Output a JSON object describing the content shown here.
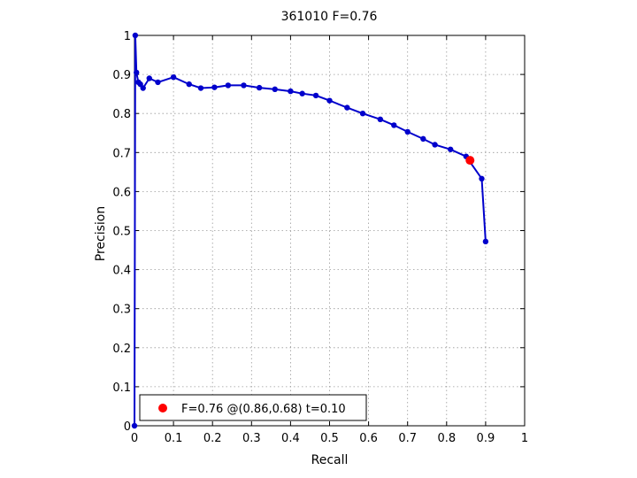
{
  "chart_data": {
    "type": "line",
    "title": "361010 F=0.76",
    "xlabel": "Recall",
    "ylabel": "Precision",
    "xlim": [
      0,
      1
    ],
    "ylim": [
      0,
      1
    ],
    "grid": true,
    "xticks": [
      "0",
      "0.1",
      "0.2",
      "0.3",
      "0.4",
      "0.5",
      "0.6",
      "0.7",
      "0.8",
      "0.9",
      "1"
    ],
    "yticks": [
      "0",
      "0.1",
      "0.2",
      "0.3",
      "0.4",
      "0.5",
      "0.6",
      "0.7",
      "0.8",
      "0.9",
      "1"
    ],
    "line_color": "#0000cc",
    "highlight_color": "#ff0000",
    "series": [
      {
        "x": [
          0.0,
          0.002,
          0.005,
          0.01,
          0.015,
          0.022,
          0.038,
          0.06,
          0.1,
          0.14,
          0.17,
          0.205,
          0.24,
          0.28,
          0.32,
          0.36,
          0.4,
          0.43,
          0.465,
          0.5,
          0.545,
          0.585,
          0.63,
          0.665,
          0.7,
          0.74,
          0.77,
          0.81,
          0.85,
          0.89,
          0.9
        ],
        "y": [
          0.0,
          1.0,
          0.905,
          0.88,
          0.875,
          0.865,
          0.89,
          0.88,
          0.893,
          0.875,
          0.865,
          0.867,
          0.872,
          0.872,
          0.866,
          0.862,
          0.857,
          0.851,
          0.846,
          0.833,
          0.815,
          0.8,
          0.785,
          0.77,
          0.753,
          0.735,
          0.72,
          0.708,
          0.69,
          0.633,
          0.472
        ]
      }
    ],
    "highlight": {
      "x": 0.86,
      "y": 0.68
    },
    "legend": {
      "position": "bottom-left",
      "entries": [
        "F=0.76 @(0.86,0.68) t=0.10"
      ]
    }
  }
}
